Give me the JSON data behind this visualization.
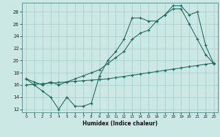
{
  "xlabel": "Humidex (Indice chaleur)",
  "bg_color": "#cce8e4",
  "grid_color": "#aacfcc",
  "line_color": "#1a6b60",
  "xlim": [
    -0.5,
    23.5
  ],
  "ylim": [
    11.5,
    29.5
  ],
  "xticks": [
    0,
    1,
    2,
    3,
    4,
    5,
    6,
    7,
    8,
    9,
    10,
    11,
    12,
    13,
    14,
    15,
    16,
    17,
    18,
    19,
    20,
    21,
    22,
    23
  ],
  "yticks": [
    12,
    14,
    16,
    18,
    20,
    22,
    24,
    26,
    28
  ],
  "line1_x": [
    0,
    1,
    2,
    3,
    4,
    5,
    6,
    7,
    8,
    9,
    10,
    11,
    12,
    13,
    14,
    15,
    16,
    17,
    18,
    19,
    20,
    21,
    22,
    23
  ],
  "line1_y": [
    17.0,
    16.0,
    15.0,
    14.0,
    12.0,
    14.0,
    12.5,
    12.5,
    13.0,
    17.5,
    20.0,
    21.5,
    23.5,
    27.0,
    27.0,
    26.5,
    26.5,
    27.5,
    28.5,
    28.5,
    26.0,
    23.5,
    21.0,
    19.5
  ],
  "line2_x": [
    0,
    1,
    2,
    3,
    4,
    5,
    6,
    7,
    8,
    9,
    10,
    11,
    12,
    13,
    14,
    15,
    16,
    17,
    18,
    19,
    20,
    21,
    22,
    23
  ],
  "line2_y": [
    17.0,
    16.5,
    16.0,
    16.5,
    16.0,
    16.5,
    17.0,
    17.5,
    18.0,
    18.5,
    19.5,
    20.5,
    21.5,
    23.5,
    24.5,
    25.0,
    26.5,
    27.5,
    29.0,
    29.0,
    27.5,
    28.0,
    22.5,
    19.5
  ],
  "line3_x": [
    0,
    1,
    2,
    3,
    4,
    5,
    6,
    7,
    8,
    9,
    10,
    11,
    12,
    13,
    14,
    15,
    16,
    17,
    18,
    19,
    20,
    21,
    22,
    23
  ],
  "line3_y": [
    16.0,
    16.1,
    16.2,
    16.3,
    16.4,
    16.5,
    16.6,
    16.7,
    16.8,
    16.9,
    17.0,
    17.2,
    17.4,
    17.6,
    17.8,
    18.0,
    18.2,
    18.4,
    18.6,
    18.8,
    19.0,
    19.2,
    19.4,
    19.6
  ]
}
